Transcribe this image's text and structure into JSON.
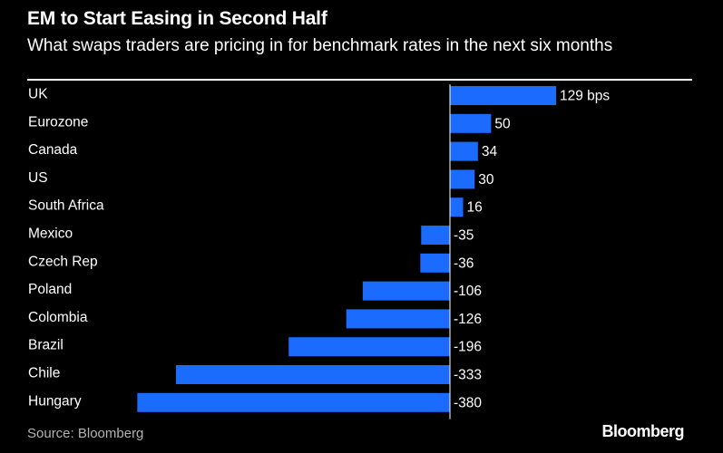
{
  "header": {
    "title": "EM to Start Easing in Second Half",
    "subtitle": "What swaps traders are pricing in for benchmark rates in the next six months"
  },
  "footer": {
    "source": "Source: Bloomberg",
    "brand": "Bloomberg"
  },
  "colors": {
    "bar": "#1c6bff",
    "background": "#000000",
    "text": "#ffffff"
  },
  "chart_data": {
    "type": "bar",
    "orientation": "horizontal",
    "unit_suffix_first": " bps",
    "categories": [
      "UK",
      "Eurozone",
      "Canada",
      "US",
      "South Africa",
      "Mexico",
      "Czech Rep",
      "Poland",
      "Colombia",
      "Brazil",
      "Chile",
      "Hungary"
    ],
    "values": [
      129,
      50,
      34,
      30,
      16,
      -35,
      -36,
      -106,
      -126,
      -196,
      -333,
      -380
    ],
    "value_labels": [
      "129 bps",
      "50",
      "34",
      "30",
      "16",
      "-35",
      "-36",
      "-106",
      "-126",
      "-196",
      "-333",
      "-380"
    ],
    "xlim": [
      -380,
      129
    ],
    "grid": false,
    "legend": "none"
  }
}
